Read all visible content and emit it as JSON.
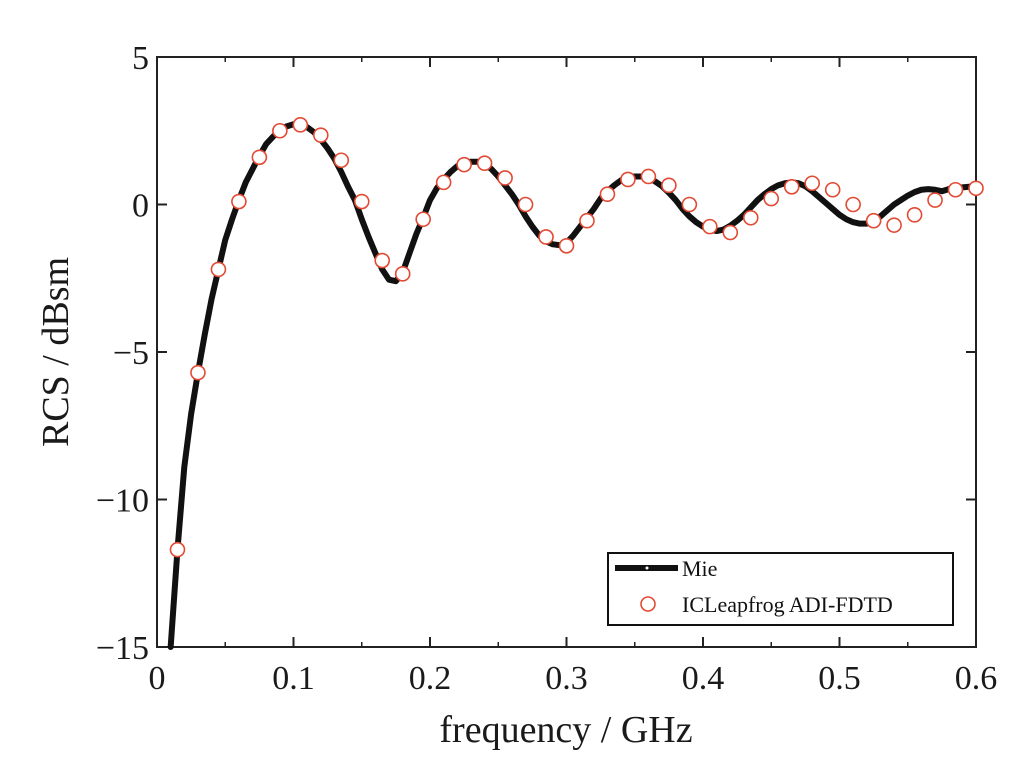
{
  "chart_data": {
    "type": "line",
    "xlabel": "frequency / GHz",
    "ylabel": "RCS / dBsm",
    "xlim": [
      0,
      0.6
    ],
    "ylim": [
      -15,
      5
    ],
    "x_ticks": [
      0,
      0.1,
      0.2,
      0.3,
      0.4,
      0.5,
      0.6
    ],
    "x_tick_labels": [
      "0",
      "0.1",
      "0.2",
      "0.3",
      "0.4",
      "0.5",
      "0.6"
    ],
    "y_ticks": [
      -15,
      -10,
      -5,
      0,
      5
    ],
    "y_tick_labels": [
      "−15",
      "−10",
      "−5",
      "0",
      "5"
    ],
    "grid": false,
    "legend_position": "bottom-right",
    "series": [
      {
        "name": "Mie",
        "style": "line",
        "color": "#111111",
        "x": [
          0.01,
          0.015,
          0.02,
          0.025,
          0.03,
          0.035,
          0.04,
          0.045,
          0.05,
          0.055,
          0.06,
          0.065,
          0.07,
          0.075,
          0.08,
          0.085,
          0.09,
          0.095,
          0.1,
          0.105,
          0.11,
          0.115,
          0.12,
          0.125,
          0.13,
          0.135,
          0.14,
          0.145,
          0.15,
          0.155,
          0.16,
          0.165,
          0.17,
          0.175,
          0.18,
          0.185,
          0.19,
          0.195,
          0.2,
          0.205,
          0.21,
          0.215,
          0.22,
          0.225,
          0.23,
          0.235,
          0.24,
          0.245,
          0.25,
          0.255,
          0.26,
          0.265,
          0.27,
          0.275,
          0.28,
          0.285,
          0.29,
          0.295,
          0.3,
          0.305,
          0.31,
          0.315,
          0.32,
          0.325,
          0.33,
          0.335,
          0.34,
          0.345,
          0.35,
          0.355,
          0.36,
          0.365,
          0.37,
          0.375,
          0.38,
          0.385,
          0.39,
          0.395,
          0.4,
          0.405,
          0.41,
          0.415,
          0.42,
          0.425,
          0.43,
          0.435,
          0.44,
          0.445,
          0.45,
          0.455,
          0.46,
          0.465,
          0.47,
          0.475,
          0.48,
          0.485,
          0.49,
          0.495,
          0.5,
          0.505,
          0.51,
          0.515,
          0.52,
          0.525,
          0.53,
          0.535,
          0.54,
          0.545,
          0.55,
          0.555,
          0.56,
          0.565,
          0.57,
          0.575,
          0.58,
          0.585,
          0.59,
          0.595,
          0.6
        ],
        "y": [
          -15.0,
          -11.7,
          -8.9,
          -7.1,
          -5.7,
          -4.4,
          -3.2,
          -2.2,
          -1.2,
          -0.5,
          0.15,
          0.75,
          1.2,
          1.65,
          2.05,
          2.3,
          2.5,
          2.65,
          2.72,
          2.72,
          2.62,
          2.45,
          2.2,
          1.9,
          1.55,
          1.1,
          0.6,
          0.15,
          -0.5,
          -1.1,
          -1.65,
          -2.2,
          -2.55,
          -2.6,
          -2.3,
          -1.65,
          -1.0,
          -0.45,
          0.15,
          0.55,
          0.85,
          1.1,
          1.3,
          1.4,
          1.45,
          1.45,
          1.38,
          1.2,
          0.95,
          0.65,
          0.35,
          0.0,
          -0.4,
          -0.75,
          -1.05,
          -1.25,
          -1.35,
          -1.38,
          -1.3,
          -1.05,
          -0.75,
          -0.45,
          -0.15,
          0.2,
          0.45,
          0.65,
          0.82,
          0.92,
          0.95,
          0.95,
          0.9,
          0.78,
          0.62,
          0.4,
          0.15,
          -0.15,
          -0.4,
          -0.6,
          -0.75,
          -0.85,
          -0.9,
          -0.85,
          -0.72,
          -0.55,
          -0.35,
          -0.1,
          0.15,
          0.35,
          0.52,
          0.65,
          0.72,
          0.75,
          0.72,
          0.62,
          0.45,
          0.25,
          0.05,
          -0.15,
          -0.35,
          -0.5,
          -0.6,
          -0.65,
          -0.65,
          -0.55,
          -0.4,
          -0.2,
          0.0,
          0.15,
          0.3,
          0.42,
          0.5,
          0.52,
          0.5,
          0.45,
          0.52,
          0.55,
          0.58,
          0.6,
          0.6
        ]
      },
      {
        "name": "ICLeapfrog ADI-FDTD",
        "style": "marker-circle",
        "color": "#e24a33",
        "x": [
          0.015,
          0.03,
          0.045,
          0.06,
          0.075,
          0.09,
          0.105,
          0.12,
          0.135,
          0.15,
          0.165,
          0.18,
          0.195,
          0.21,
          0.225,
          0.24,
          0.255,
          0.27,
          0.285,
          0.3,
          0.315,
          0.33,
          0.345,
          0.36,
          0.375,
          0.39,
          0.405,
          0.42,
          0.435,
          0.45,
          0.465,
          0.48,
          0.495,
          0.51,
          0.525,
          0.54,
          0.555,
          0.57,
          0.585,
          0.6
        ],
        "y": [
          -11.7,
          -5.7,
          -2.2,
          0.1,
          1.6,
          2.5,
          2.7,
          2.35,
          1.5,
          0.1,
          -1.9,
          -2.35,
          -0.5,
          0.75,
          1.35,
          1.4,
          0.9,
          0.0,
          -1.1,
          -1.4,
          -0.55,
          0.35,
          0.85,
          0.95,
          0.65,
          0.0,
          -0.75,
          -0.95,
          -0.45,
          0.2,
          0.6,
          0.72,
          0.5,
          0.0,
          -0.55,
          -0.7,
          -0.35,
          0.15,
          0.5,
          0.55
        ]
      }
    ]
  }
}
